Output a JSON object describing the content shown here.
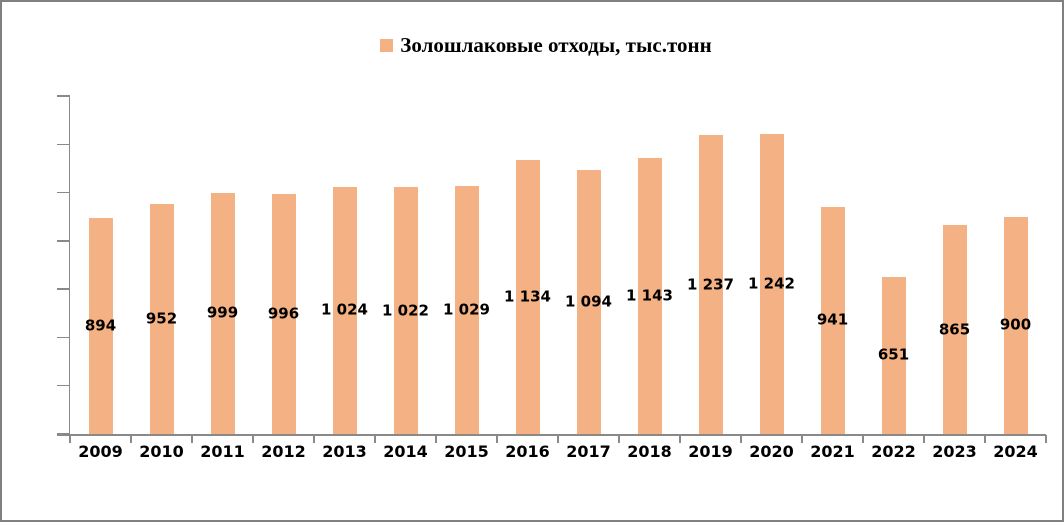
{
  "chart_data": {
    "type": "bar",
    "legend": "Золошлаковые отходы, тыс.тонн",
    "legend_position": "top",
    "categories": [
      "2009",
      "2010",
      "2011",
      "2012",
      "2013",
      "2014",
      "2015",
      "2016",
      "2017",
      "2018",
      "2019",
      "2020",
      "2021",
      "2022",
      "2023",
      "2024"
    ],
    "values": [
      894,
      952,
      999,
      996,
      1024,
      1022,
      1029,
      1134,
      1094,
      1143,
      1237,
      1242,
      941,
      651,
      865,
      900
    ],
    "value_labels": [
      "894",
      "952",
      "999",
      "996",
      "1 024",
      "1 022",
      "1 029",
      "1 134",
      "1 094",
      "1 143",
      "1 237",
      "1 242",
      "941",
      "651",
      "865",
      "900"
    ],
    "title": "",
    "xlabel": "",
    "ylabel": "",
    "ylim": [
      0,
      1400
    ],
    "ytick_step": 200,
    "y_tick_labels_visible": false,
    "grid": false,
    "data_label_position": "inside-center",
    "bar_color": "#F4B183",
    "axis_color": "#898989",
    "border_color": "#808080",
    "label_color": "#000000"
  }
}
